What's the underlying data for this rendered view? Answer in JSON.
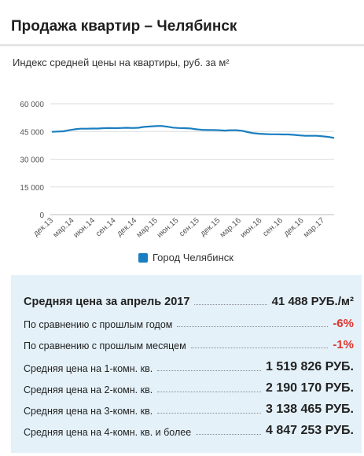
{
  "header": {
    "title": "Продажа квартир – Челябинск"
  },
  "chart_data": {
    "type": "line",
    "title": "Индекс средней цены на квартиры, руб. за м²",
    "ylim": [
      0,
      60000
    ],
    "yticks": [
      0,
      15000,
      30000,
      45000,
      60000
    ],
    "ytick_labels": [
      "0",
      "15 000",
      "30 000",
      "45 000",
      "60 000"
    ],
    "xtick_labels": [
      "дек.13",
      "мар.14",
      "июн.14",
      "сен.14",
      "дек.14",
      "мар.15",
      "июн.15",
      "сен.15",
      "дек.15",
      "мар.16",
      "июн.16",
      "сен.16",
      "дек.16",
      "мар.17"
    ],
    "grid": true,
    "color": "#1a7fc0",
    "series": [
      {
        "name": "Город Челябинск",
        "values": [
          44800,
          45000,
          45100,
          45700,
          46200,
          46500,
          46500,
          46600,
          46600,
          46800,
          46900,
          46800,
          46900,
          47000,
          46900,
          47000,
          47500,
          47700,
          47900,
          48000,
          47600,
          47100,
          46900,
          46800,
          46700,
          46200,
          45900,
          45800,
          45800,
          45700,
          45500,
          45700,
          45700,
          45400,
          44700,
          44100,
          43800,
          43600,
          43500,
          43500,
          43400,
          43400,
          43200,
          42900,
          42700,
          42700,
          42700,
          42400,
          42100,
          41500
        ]
      }
    ]
  },
  "legend": {
    "label": "Город Челябинск"
  },
  "summary": {
    "avg_price_label": "Средняя цена за апрель 2017",
    "avg_price_value": "41 488 РУБ./м²",
    "vs_year_label": "По сравнению с прошлым годом",
    "vs_year_value": "-6%",
    "vs_month_label": "По сравнению с прошлым месяцем",
    "vs_month_value": "-1%",
    "room1_label": "Средняя цена на 1-комн. кв.",
    "room1_value": "1 519 826 РУБ.",
    "room2_label": "Средняя цена на 2-комн. кв.",
    "room2_value": "2 190 170 РУБ.",
    "room3_label": "Средняя цена на 3-комн. кв.",
    "room3_value": "3 138 465 РУБ.",
    "room4_label": "Средняя цена на 4-комн. кв. и более",
    "room4_value": "4 847 253 РУБ."
  }
}
